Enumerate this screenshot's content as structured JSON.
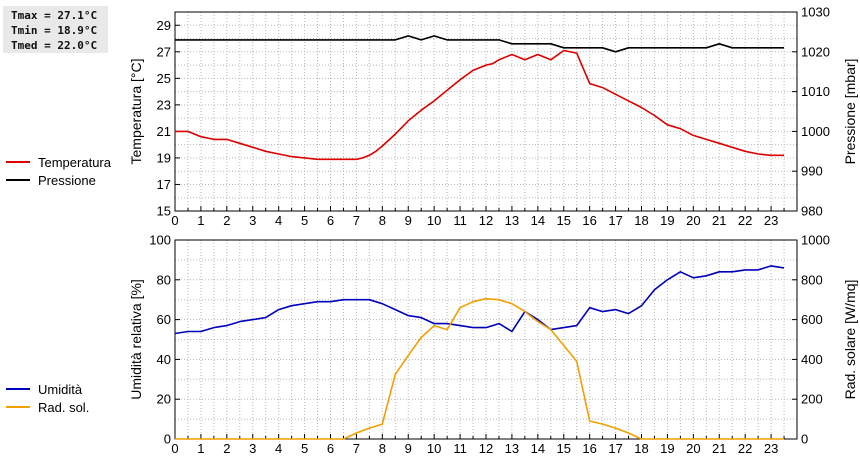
{
  "stats": {
    "tmax": "Tmax = 27.1°C",
    "tmin": "Tmin = 18.9°C",
    "tmed": "Tmed = 22.0°C"
  },
  "legend_top": [
    {
      "label": "Temperatura",
      "color": "#dd0000"
    },
    {
      "label": "Pressione",
      "color": "#000000"
    }
  ],
  "legend_bottom": [
    {
      "label": "Umidità",
      "color": "#0000bb"
    },
    {
      "label": "Rad. sol.",
      "color": "#f0a000"
    }
  ],
  "chart_data": [
    {
      "type": "line",
      "ylabel": "Temperatura [°C]",
      "y2label": "Pressione [mbar]",
      "xlim": [
        0,
        24
      ],
      "ylim": [
        15,
        30
      ],
      "y2lim": [
        980,
        1030
      ],
      "xticks": [
        0,
        1,
        2,
        3,
        4,
        5,
        6,
        7,
        8,
        9,
        10,
        11,
        12,
        13,
        14,
        15,
        16,
        17,
        18,
        19,
        20,
        21,
        22,
        23
      ],
      "yticks": [
        15,
        17,
        19,
        21,
        23,
        25,
        27,
        29
      ],
      "y2ticks": [
        980,
        990,
        1000,
        1010,
        1020,
        1030
      ],
      "grid": true,
      "series": [
        {
          "name": "Temperatura",
          "color": "#dd0000",
          "axis": "left",
          "x": [
            0,
            0.5,
            1,
            1.5,
            2,
            2.5,
            3,
            3.5,
            4,
            4.5,
            5,
            5.5,
            6,
            6.5,
            7,
            7.25,
            7.5,
            7.75,
            8,
            8.5,
            9,
            9.5,
            10,
            10.5,
            11,
            11.5,
            12,
            12.25,
            12.5,
            13,
            13.5,
            14,
            14.5,
            15,
            15.5,
            16,
            16.5,
            17,
            17.5,
            18,
            18.5,
            19,
            19.5,
            20,
            20.5,
            21,
            21.5,
            22,
            22.5,
            23,
            23.5
          ],
          "values": [
            21.0,
            21.0,
            20.6,
            20.4,
            20.4,
            20.1,
            19.8,
            19.5,
            19.3,
            19.1,
            19.0,
            18.9,
            18.9,
            18.9,
            18.9,
            19.0,
            19.2,
            19.5,
            19.9,
            20.8,
            21.8,
            22.6,
            23.3,
            24.1,
            24.9,
            25.6,
            26.0,
            26.1,
            26.4,
            26.8,
            26.4,
            26.8,
            26.4,
            27.1,
            26.9,
            24.6,
            24.3,
            23.8,
            23.3,
            22.8,
            22.2,
            21.5,
            21.2,
            20.7,
            20.4,
            20.1,
            19.8,
            19.5,
            19.3,
            19.2,
            19.2
          ]
        },
        {
          "name": "Pressione",
          "color": "#000000",
          "axis": "right",
          "x": [
            0,
            1,
            2,
            3,
            4,
            5,
            6,
            7,
            8,
            8.5,
            9,
            9.5,
            10,
            10.5,
            11,
            12,
            12.5,
            13,
            14,
            14.5,
            15,
            15.5,
            16,
            16.5,
            17,
            17.5,
            18,
            19,
            20,
            20.5,
            21,
            21.5,
            22,
            23,
            23.5
          ],
          "values": [
            1023,
            1023,
            1023,
            1023,
            1023,
            1023,
            1023,
            1023,
            1023,
            1023,
            1024,
            1023,
            1024,
            1023,
            1023,
            1023,
            1023,
            1022,
            1022,
            1022,
            1021,
            1021,
            1021,
            1021,
            1020,
            1021,
            1021,
            1021,
            1021,
            1021,
            1022,
            1021,
            1021,
            1021,
            1021
          ]
        }
      ]
    },
    {
      "type": "line",
      "ylabel": "Umidità relativa [%]",
      "y2label": "Rad. solare [W/mq]",
      "xlim": [
        0,
        24
      ],
      "ylim": [
        0,
        100
      ],
      "y2lim": [
        0,
        1000
      ],
      "xticks": [
        0,
        1,
        2,
        3,
        4,
        5,
        6,
        7,
        8,
        9,
        10,
        11,
        12,
        13,
        14,
        15,
        16,
        17,
        18,
        19,
        20,
        21,
        22,
        23
      ],
      "yticks": [
        0,
        20,
        40,
        60,
        80,
        100
      ],
      "y2ticks": [
        0,
        200,
        400,
        600,
        800,
        1000
      ],
      "grid": true,
      "series": [
        {
          "name": "Umidità",
          "color": "#0000bb",
          "axis": "left",
          "x": [
            0,
            0.5,
            1,
            1.5,
            2,
            2.5,
            3,
            3.5,
            4,
            4.5,
            5,
            5.5,
            6,
            6.5,
            7,
            7.5,
            8,
            8.5,
            9,
            9.5,
            10,
            10.5,
            11,
            11.5,
            12,
            12.5,
            13,
            13.5,
            14,
            14.5,
            15,
            15.5,
            16,
            16.5,
            17,
            17.5,
            18,
            18.5,
            19,
            19.5,
            20,
            20.5,
            21,
            21.5,
            22,
            22.5,
            23,
            23.5
          ],
          "values": [
            53,
            54,
            54,
            56,
            57,
            59,
            60,
            61,
            65,
            67,
            68,
            69,
            69,
            70,
            70,
            70,
            68,
            65,
            62,
            61,
            58,
            58,
            57,
            56,
            56,
            58,
            54,
            64,
            60,
            55,
            56,
            57,
            66,
            64,
            65,
            63,
            67,
            75,
            80,
            84,
            81,
            82,
            84,
            84,
            85,
            85,
            87,
            86
          ]
        },
        {
          "name": "Rad. sol.",
          "color": "#f0a000",
          "axis": "right",
          "x": [
            0,
            1,
            2,
            3,
            4,
            5,
            6,
            6.5,
            7,
            7.5,
            8,
            8.5,
            9,
            9.5,
            10,
            10.5,
            11,
            11.5,
            12,
            12.5,
            13,
            13.5,
            14,
            14.5,
            15,
            15.5,
            16,
            16.5,
            17,
            17.5,
            18,
            19,
            20,
            21,
            22,
            23,
            23.5
          ],
          "values": [
            0,
            0,
            0,
            0,
            0,
            0,
            0,
            0,
            30,
            55,
            75,
            325,
            420,
            510,
            570,
            550,
            660,
            690,
            705,
            700,
            680,
            640,
            590,
            550,
            470,
            390,
            90,
            75,
            55,
            30,
            0,
            0,
            0,
            0,
            0,
            0,
            0
          ]
        }
      ]
    }
  ]
}
